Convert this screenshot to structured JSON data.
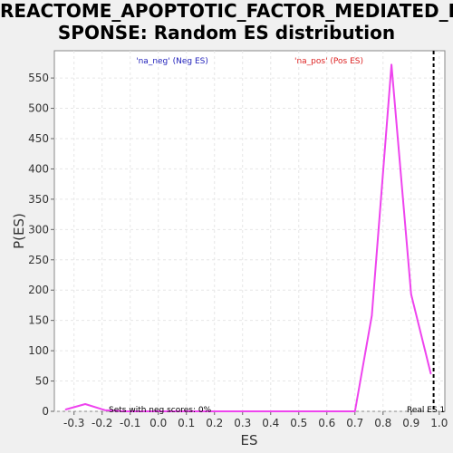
{
  "chart_data": {
    "type": "line",
    "title_lines": [
      "REACTOME_APOPTOTIC_FACTOR_MEDIATED_RE",
      "SPONSE: Random ES distribution"
    ],
    "xlabel": "ES",
    "ylabel": "P(ES)",
    "xlim": [
      -0.37,
      1.02
    ],
    "ylim": [
      0,
      595
    ],
    "xticks": [
      -0.3,
      -0.2,
      -0.1,
      0.0,
      0.1,
      0.2,
      0.3,
      0.4,
      0.5,
      0.6,
      0.7,
      0.8,
      0.9,
      1.0
    ],
    "xtick_labels": [
      "-0.3",
      "-0.2",
      "-0.1",
      "0.0",
      "0.1",
      "0.2",
      "0.3",
      "0.4",
      "0.5",
      "0.6",
      "0.7",
      "0.8",
      "0.9",
      "1.0"
    ],
    "yticks": [
      0,
      50,
      100,
      150,
      200,
      250,
      300,
      350,
      400,
      450,
      500,
      550
    ],
    "ytick_labels": [
      "0",
      "50",
      "100",
      "150",
      "200",
      "250",
      "300",
      "350",
      "400",
      "450",
      "500",
      "550"
    ],
    "grid": true,
    "series": [
      {
        "color": "#ee44ee",
        "x": [
          -0.33,
          -0.26,
          -0.19,
          -0.12,
          0.7,
          0.76,
          0.83,
          0.9,
          0.97
        ],
        "y": [
          3,
          12,
          2,
          0,
          0,
          158,
          572,
          193,
          62
        ]
      }
    ],
    "annotations": {
      "neg_label": "'na_neg' (Neg ES)",
      "neg_color": "#2222bb",
      "pos_label": "'na_pos' (Pos ES)",
      "pos_color": "#dd2222",
      "pct_text": "Sets with neg scores: 0%",
      "real_es_label": "Real ES 1",
      "real_es_value": 0.98
    }
  }
}
